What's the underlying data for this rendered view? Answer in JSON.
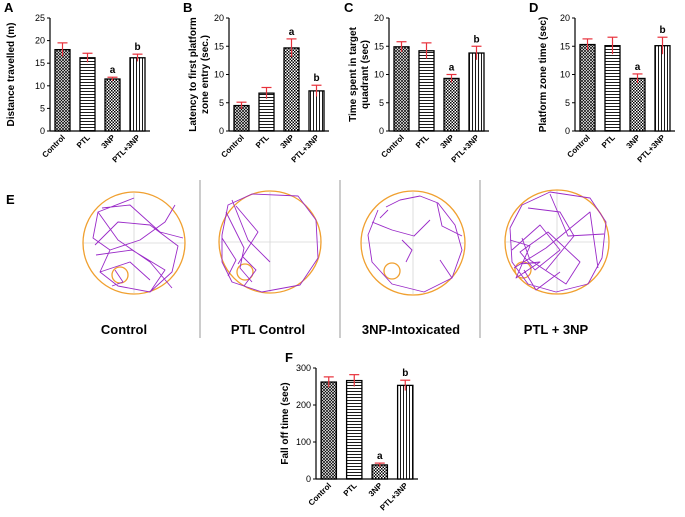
{
  "figure": {
    "panel_e": {
      "letter": "E",
      "groups": [
        "Control",
        "PTL Control",
        "3NP-Intoxicated",
        "PTL + 3NP"
      ]
    }
  },
  "chart_data": [
    {
      "letter": "A",
      "type": "bar",
      "categories": [
        "Control",
        "PTL",
        "3NP",
        "PTL+3NP"
      ],
      "values": [
        18,
        16.2,
        11.5,
        16.2
      ],
      "errors": [
        1.5,
        1.0,
        0.4,
        0.8
      ],
      "significance": [
        "",
        "",
        "a",
        "b"
      ],
      "ylabel": "Distance travelled (m)",
      "ylim": [
        0,
        25
      ],
      "yticks": [
        "0",
        "5",
        "10",
        "15",
        "20",
        "25"
      ]
    },
    {
      "letter": "B",
      "type": "bar",
      "categories": [
        "Control",
        "PTL",
        "3NP",
        "PTL+3NP"
      ],
      "values": [
        4.5,
        6.7,
        14.7,
        7.1
      ],
      "errors": [
        0.6,
        1.0,
        1.6,
        1.0
      ],
      "significance": [
        "",
        "",
        "a",
        "b"
      ],
      "ylabel": "Latency to first platform zone entry (sec.)",
      "ylabel_lines": [
        "Latency to first platform",
        "zone entry (sec.)"
      ],
      "ylim": [
        0,
        20
      ],
      "yticks": [
        "0",
        "5",
        "10",
        "15",
        "20"
      ]
    },
    {
      "letter": "C",
      "type": "bar",
      "categories": [
        "Control",
        "PTL",
        "3NP",
        "PTL+3NP"
      ],
      "values": [
        14.9,
        14.2,
        9.3,
        13.8
      ],
      "errors": [
        0.9,
        1.4,
        0.7,
        1.2
      ],
      "significance": [
        "",
        "",
        "a",
        "b"
      ],
      "ylabel": "Time spent in target quadrant (sec)",
      "ylabel_lines": [
        "Time spent in target",
        "quadrant (sec)"
      ],
      "ylim": [
        0,
        20
      ],
      "yticks": [
        "0",
        "5",
        "10",
        "15",
        "20"
      ]
    },
    {
      "letter": "D",
      "type": "bar",
      "categories": [
        "Control",
        "PTL",
        "3NP",
        "PTL+3NP"
      ],
      "values": [
        15.3,
        15.1,
        9.3,
        15.1
      ],
      "errors": [
        1.0,
        1.5,
        0.8,
        1.5
      ],
      "significance": [
        "",
        "",
        "a",
        "b"
      ],
      "ylabel": "Platform zone time (sec)",
      "ylim": [
        0,
        20
      ],
      "yticks": [
        "0",
        "5",
        "10",
        "15",
        "20"
      ]
    },
    {
      "letter": "F",
      "type": "bar",
      "categories": [
        "Control",
        "PTL",
        "3NP",
        "PTL+3NP"
      ],
      "values": [
        262,
        266,
        38,
        253
      ],
      "errors": [
        14,
        16,
        5,
        14
      ],
      "significance": [
        "",
        "",
        "a",
        "b"
      ],
      "ylabel": "Fall off time (sec)",
      "ylim": [
        0,
        300
      ],
      "yticks": [
        "0",
        "100",
        "200",
        "300"
      ]
    }
  ],
  "colors": {
    "bar_stroke": "#000000",
    "error_bar": "#e8323c",
    "arena": "#f0a030",
    "track": "#9a2ac8",
    "divider": "#9a9a9a",
    "crosshair": "#d6d6d6"
  },
  "pattern_names": [
    "crosshatch",
    "horizontal-lines",
    "checker",
    "vertical-lines"
  ]
}
